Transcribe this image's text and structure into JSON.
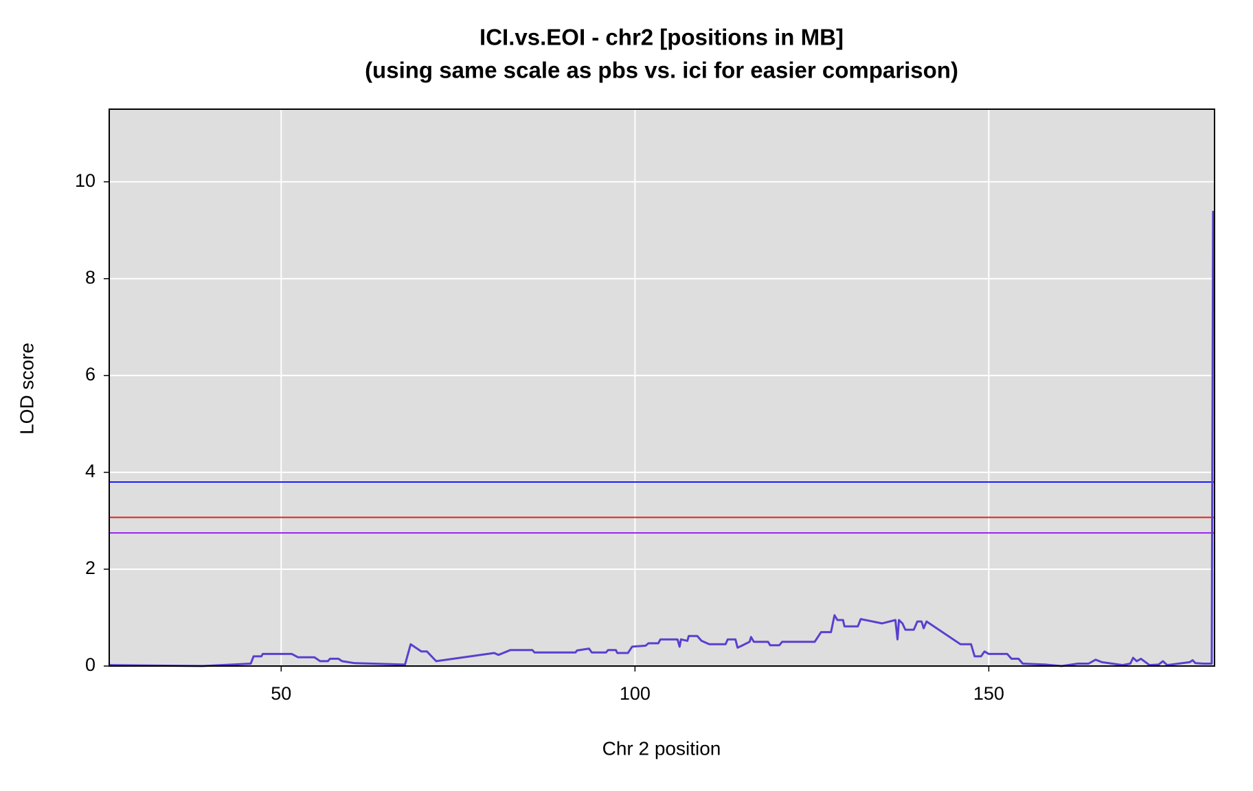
{
  "chart_data": {
    "type": "line",
    "title": "ICI.vs.EOI - chr2 [positions in MB]",
    "subtitle": "(using same scale as pbs vs. ici for easier comparison)",
    "x_label": "Chr 2 position",
    "y_label": "LOD score",
    "xlim": [
      25.7,
      181.9
    ],
    "ylim": [
      0,
      11.5
    ],
    "xticks": [
      50,
      100,
      150
    ],
    "yticks": [
      0,
      2,
      4,
      6,
      8,
      10
    ],
    "grid": true,
    "thresholds": [
      {
        "value": 3.8,
        "color": "#1a1aff"
      },
      {
        "value": 3.07,
        "color": "#e02020"
      },
      {
        "value": 2.75,
        "color": "#9a22e6"
      }
    ],
    "series": [
      {
        "color": "#5a3fcf",
        "x": [
          25.7,
          38.9,
          45.7,
          46.1,
          47.2,
          47.4,
          51.5,
          52.4,
          54.7,
          55.5,
          56.6,
          56.9,
          58.1,
          58.6,
          60.4,
          67.5,
          68.3,
          69.8,
          70.6,
          71.9,
          80.1,
          80.7,
          82.4,
          85.5,
          85.8,
          91.6,
          91.8,
          93.5,
          93.9,
          95.9,
          96.2,
          97.3,
          97.5,
          99.0,
          99.6,
          101.5,
          101.9,
          103.3,
          103.6,
          106.0,
          106.3,
          106.5,
          107.4,
          107.6,
          108.8,
          109.4,
          110.5,
          112.8,
          113.1,
          114.2,
          114.5,
          115.1,
          116.2,
          116.4,
          116.8,
          118.8,
          119.1,
          120.4,
          120.8,
          125.4,
          126.3,
          127.7,
          128.2,
          128.6,
          129.4,
          129.6,
          131.5,
          131.9,
          134.9,
          136.8,
          137.1,
          137.3,
          137.8,
          138.2,
          139.4,
          139.9,
          140.5,
          140.8,
          141.2,
          146.0,
          147.5,
          148.0,
          148.9,
          149.4,
          150.0,
          152.6,
          153.2,
          154.2,
          154.8,
          158.0,
          160.3,
          162.6,
          164.1,
          165.1,
          166.0,
          168.9,
          170.0,
          170.4,
          170.9,
          171.5,
          172.7,
          174.0,
          174.6,
          175.2,
          178.4,
          178.8,
          179.2,
          180.3,
          181.5,
          181.7
        ],
        "values": [
          0.02,
          0,
          0.05,
          0.2,
          0.2,
          0.25,
          0.25,
          0.18,
          0.18,
          0.1,
          0.1,
          0.15,
          0.15,
          0.1,
          0.06,
          0.03,
          0.45,
          0.3,
          0.3,
          0.1,
          0.27,
          0.23,
          0.33,
          0.33,
          0.28,
          0.28,
          0.32,
          0.36,
          0.28,
          0.28,
          0.33,
          0.33,
          0.27,
          0.27,
          0.4,
          0.42,
          0.47,
          0.47,
          0.55,
          0.55,
          0.4,
          0.55,
          0.52,
          0.62,
          0.62,
          0.52,
          0.45,
          0.45,
          0.55,
          0.55,
          0.38,
          0.42,
          0.5,
          0.6,
          0.5,
          0.5,
          0.43,
          0.43,
          0.5,
          0.5,
          0.7,
          0.7,
          1.05,
          0.95,
          0.95,
          0.82,
          0.82,
          0.97,
          0.88,
          0.95,
          0.55,
          0.95,
          0.88,
          0.75,
          0.75,
          0.92,
          0.92,
          0.78,
          0.92,
          0.45,
          0.45,
          0.2,
          0.2,
          0.3,
          0.25,
          0.25,
          0.15,
          0.15,
          0.05,
          0.03,
          0,
          0.05,
          0.05,
          0.13,
          0.08,
          0.02,
          0.05,
          0.17,
          0.1,
          0.15,
          0.02,
          0.03,
          0.1,
          0.02,
          0.08,
          0.12,
          0.06,
          0.05,
          0.05,
          9.4
        ]
      }
    ]
  }
}
